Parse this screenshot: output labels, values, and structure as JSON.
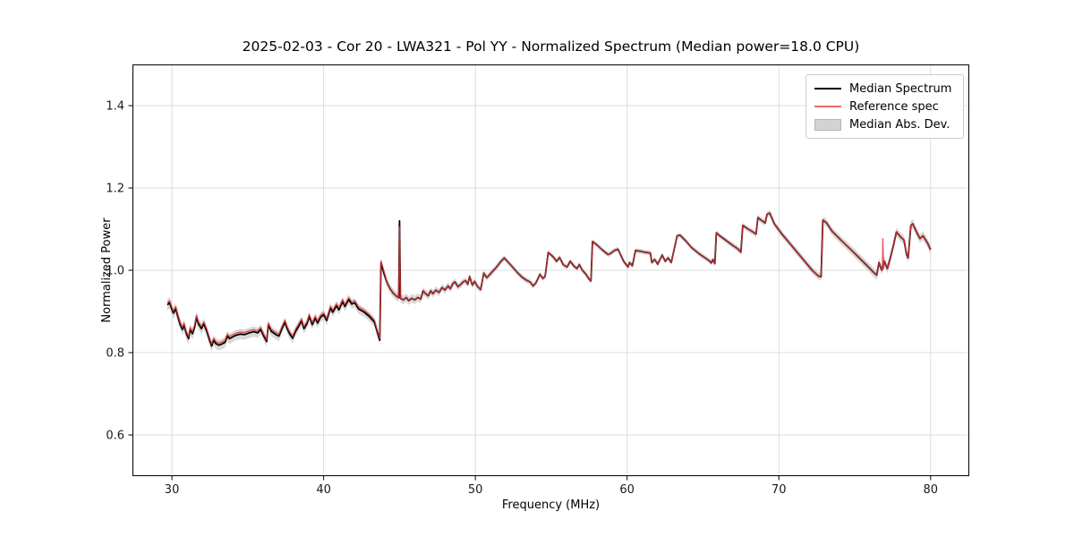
{
  "title": "2025-02-03 - Cor 20 - LWA321 - Pol YY - Normalized Spectrum (Median power=18.0 CPU)",
  "colors": {
    "median": "#000000",
    "reference": "#dd3333",
    "reference_legend": "#ee6a6a",
    "band": "#bfbfbf",
    "grid": "#dcdcdc",
    "spine": "#000000",
    "tick_label": "#1a1a1a",
    "background": "#ffffff"
  },
  "legend": {
    "position": "upper right",
    "items": [
      {
        "label": "Median Spectrum",
        "swatch": "line",
        "color": "#000000"
      },
      {
        "label": "Reference spec",
        "swatch": "line",
        "color": "#ee6a6a"
      },
      {
        "label": "Median Abs. Dev.",
        "swatch": "patch",
        "color": "#d3d3d3"
      }
    ]
  },
  "chart_data": {
    "type": "line",
    "title": "2025-02-03 - Cor 20 - LWA321 - Pol YY - Normalized Spectrum (Median power=18.0 CPU)",
    "xlabel": "Frequency (MHz)",
    "ylabel": "Normalized Power",
    "xlim": [
      27.4,
      82.55
    ],
    "ylim": [
      0.5,
      1.5
    ],
    "xticks": [
      30,
      40,
      50,
      60,
      70,
      80
    ],
    "yticks": [
      0.6,
      0.8,
      1.0,
      1.2,
      1.4
    ],
    "grid": true,
    "legend_position": "upper right",
    "series": [
      {
        "name": "Median Spectrum",
        "type": "line",
        "color": "#000000",
        "linewidth": 1.8,
        "points": [
          [
            29.7,
            0.916
          ],
          [
            29.85,
            0.921
          ],
          [
            30.0,
            0.905
          ],
          [
            30.1,
            0.896
          ],
          [
            30.25,
            0.907
          ],
          [
            30.4,
            0.886
          ],
          [
            30.55,
            0.868
          ],
          [
            30.7,
            0.856
          ],
          [
            30.8,
            0.867
          ],
          [
            30.95,
            0.846
          ],
          [
            31.1,
            0.834
          ],
          [
            31.2,
            0.856
          ],
          [
            31.35,
            0.846
          ],
          [
            31.5,
            0.862
          ],
          [
            31.62,
            0.886
          ],
          [
            31.75,
            0.87
          ],
          [
            31.95,
            0.858
          ],
          [
            32.1,
            0.87
          ],
          [
            32.3,
            0.852
          ],
          [
            32.5,
            0.828
          ],
          [
            32.62,
            0.816
          ],
          [
            32.75,
            0.83
          ],
          [
            32.9,
            0.822
          ],
          [
            33.1,
            0.818
          ],
          [
            33.3,
            0.821
          ],
          [
            33.5,
            0.825
          ],
          [
            33.65,
            0.84
          ],
          [
            33.8,
            0.834
          ],
          [
            34.0,
            0.838
          ],
          [
            34.2,
            0.842
          ],
          [
            34.5,
            0.845
          ],
          [
            34.8,
            0.844
          ],
          [
            35.1,
            0.848
          ],
          [
            35.4,
            0.851
          ],
          [
            35.65,
            0.848
          ],
          [
            35.85,
            0.856
          ],
          [
            36.05,
            0.84
          ],
          [
            36.25,
            0.827
          ],
          [
            36.35,
            0.867
          ],
          [
            36.55,
            0.852
          ],
          [
            36.8,
            0.845
          ],
          [
            37.05,
            0.84
          ],
          [
            37.25,
            0.858
          ],
          [
            37.45,
            0.874
          ],
          [
            37.6,
            0.858
          ],
          [
            37.75,
            0.846
          ],
          [
            37.95,
            0.835
          ],
          [
            38.15,
            0.852
          ],
          [
            38.35,
            0.864
          ],
          [
            38.55,
            0.877
          ],
          [
            38.7,
            0.858
          ],
          [
            38.9,
            0.87
          ],
          [
            39.05,
            0.888
          ],
          [
            39.25,
            0.868
          ],
          [
            39.45,
            0.884
          ],
          [
            39.6,
            0.872
          ],
          [
            39.8,
            0.886
          ],
          [
            40.0,
            0.892
          ],
          [
            40.2,
            0.878
          ],
          [
            40.45,
            0.908
          ],
          [
            40.6,
            0.898
          ],
          [
            40.85,
            0.914
          ],
          [
            41.0,
            0.904
          ],
          [
            41.25,
            0.924
          ],
          [
            41.4,
            0.912
          ],
          [
            41.65,
            0.929
          ],
          [
            41.85,
            0.918
          ],
          [
            42.05,
            0.921
          ],
          [
            42.3,
            0.906
          ],
          [
            42.65,
            0.899
          ],
          [
            43.0,
            0.888
          ],
          [
            43.35,
            0.874
          ],
          [
            43.55,
            0.848
          ],
          [
            43.7,
            0.83
          ],
          [
            43.78,
            1.018
          ],
          [
            44.0,
            0.99
          ],
          [
            44.2,
            0.968
          ],
          [
            44.4,
            0.954
          ],
          [
            44.6,
            0.944
          ],
          [
            44.8,
            0.937
          ],
          [
            44.95,
            0.933
          ],
          [
            45.0,
            1.12
          ],
          [
            45.06,
            0.932
          ],
          [
            45.25,
            0.928
          ],
          [
            45.45,
            0.934
          ],
          [
            45.6,
            0.926
          ],
          [
            45.8,
            0.932
          ],
          [
            46.0,
            0.928
          ],
          [
            46.2,
            0.934
          ],
          [
            46.4,
            0.93
          ],
          [
            46.55,
            0.95
          ],
          [
            46.7,
            0.944
          ],
          [
            46.9,
            0.938
          ],
          [
            47.05,
            0.95
          ],
          [
            47.2,
            0.943
          ],
          [
            47.4,
            0.952
          ],
          [
            47.6,
            0.946
          ],
          [
            47.8,
            0.958
          ],
          [
            48.0,
            0.952
          ],
          [
            48.2,
            0.962
          ],
          [
            48.35,
            0.955
          ],
          [
            48.5,
            0.967
          ],
          [
            48.65,
            0.972
          ],
          [
            48.85,
            0.96
          ],
          [
            49.05,
            0.966
          ],
          [
            49.2,
            0.972
          ],
          [
            49.35,
            0.975
          ],
          [
            49.5,
            0.966
          ],
          [
            49.62,
            0.985
          ],
          [
            49.8,
            0.964
          ],
          [
            49.95,
            0.973
          ],
          [
            50.15,
            0.96
          ],
          [
            50.35,
            0.953
          ],
          [
            50.55,
            0.993
          ],
          [
            50.75,
            0.982
          ],
          [
            50.95,
            0.99
          ],
          [
            51.15,
            0.998
          ],
          [
            51.4,
            1.008
          ],
          [
            51.65,
            1.02
          ],
          [
            51.9,
            1.03
          ],
          [
            52.15,
            1.02
          ],
          [
            52.45,
            1.008
          ],
          [
            52.75,
            0.995
          ],
          [
            53.05,
            0.984
          ],
          [
            53.35,
            0.976
          ],
          [
            53.6,
            0.972
          ],
          [
            53.8,
            0.962
          ],
          [
            54.0,
            0.97
          ],
          [
            54.25,
            0.99
          ],
          [
            54.45,
            0.98
          ],
          [
            54.6,
            0.985
          ],
          [
            54.8,
            1.043
          ],
          [
            55.1,
            1.034
          ],
          [
            55.35,
            1.022
          ],
          [
            55.55,
            1.031
          ],
          [
            55.8,
            1.013
          ],
          [
            56.05,
            1.008
          ],
          [
            56.25,
            1.022
          ],
          [
            56.5,
            1.01
          ],
          [
            56.7,
            1.004
          ],
          [
            56.85,
            1.014
          ],
          [
            57.05,
            1.0
          ],
          [
            57.3,
            0.99
          ],
          [
            57.5,
            0.978
          ],
          [
            57.62,
            0.974
          ],
          [
            57.72,
            1.07
          ],
          [
            58.0,
            1.062
          ],
          [
            58.35,
            1.05
          ],
          [
            58.75,
            1.038
          ],
          [
            58.95,
            1.042
          ],
          [
            59.15,
            1.048
          ],
          [
            59.4,
            1.051
          ],
          [
            59.77,
            1.022
          ],
          [
            60.06,
            1.008
          ],
          [
            60.16,
            1.019
          ],
          [
            60.35,
            1.011
          ],
          [
            60.55,
            1.048
          ],
          [
            60.9,
            1.046
          ],
          [
            61.15,
            1.044
          ],
          [
            61.53,
            1.042
          ],
          [
            61.63,
            1.019
          ],
          [
            61.82,
            1.026
          ],
          [
            62.02,
            1.015
          ],
          [
            62.31,
            1.037
          ],
          [
            62.51,
            1.022
          ],
          [
            62.71,
            1.03
          ],
          [
            62.91,
            1.019
          ],
          [
            63.3,
            1.084
          ],
          [
            63.5,
            1.085
          ],
          [
            63.9,
            1.07
          ],
          [
            64.25,
            1.055
          ],
          [
            64.75,
            1.04
          ],
          [
            65.15,
            1.03
          ],
          [
            65.45,
            1.022
          ],
          [
            65.55,
            1.018
          ],
          [
            65.65,
            1.026
          ],
          [
            65.78,
            1.016
          ],
          [
            65.88,
            1.091
          ],
          [
            66.1,
            1.084
          ],
          [
            66.5,
            1.073
          ],
          [
            66.9,
            1.062
          ],
          [
            67.3,
            1.052
          ],
          [
            67.5,
            1.044
          ],
          [
            67.62,
            1.109
          ],
          [
            67.9,
            1.102
          ],
          [
            68.2,
            1.095
          ],
          [
            68.5,
            1.088
          ],
          [
            68.62,
            1.128
          ],
          [
            68.9,
            1.12
          ],
          [
            69.1,
            1.115
          ],
          [
            69.22,
            1.136
          ],
          [
            69.4,
            1.139
          ],
          [
            69.7,
            1.113
          ],
          [
            70.2,
            1.088
          ],
          [
            70.7,
            1.066
          ],
          [
            71.2,
            1.044
          ],
          [
            71.7,
            1.022
          ],
          [
            72.2,
            1.0
          ],
          [
            72.6,
            0.986
          ],
          [
            72.78,
            0.984
          ],
          [
            72.9,
            1.122
          ],
          [
            73.15,
            1.115
          ],
          [
            73.5,
            1.095
          ],
          [
            74.1,
            1.073
          ],
          [
            74.7,
            1.052
          ],
          [
            75.3,
            1.03
          ],
          [
            75.9,
            1.008
          ],
          [
            76.3,
            0.993
          ],
          [
            76.45,
            0.988
          ],
          [
            76.6,
            1.019
          ],
          [
            76.78,
            1.0
          ],
          [
            76.95,
            1.022
          ],
          [
            77.15,
            1.004
          ],
          [
            77.35,
            1.03
          ],
          [
            77.55,
            1.06
          ],
          [
            77.75,
            1.093
          ],
          [
            78.0,
            1.082
          ],
          [
            78.25,
            1.073
          ],
          [
            78.42,
            1.037
          ],
          [
            78.52,
            1.03
          ],
          [
            78.7,
            1.109
          ],
          [
            78.82,
            1.113
          ],
          [
            79.1,
            1.091
          ],
          [
            79.3,
            1.077
          ],
          [
            79.5,
            1.084
          ],
          [
            79.8,
            1.066
          ],
          [
            80.0,
            1.05
          ]
        ]
      },
      {
        "name": "Reference spec",
        "type": "line",
        "color": "#dd3333",
        "opacity": 0.85,
        "linewidth": 1.3,
        "derive": {
          "from": "Median Spectrum",
          "offset_below_mhz": 44.0,
          "offset": 0.005,
          "overrides": [
            [
              45.0,
              1.105
            ]
          ],
          "extra_points": [
            [
              76.82,
              1.002
            ],
            [
              76.85,
              1.077
            ],
            [
              76.9,
              1.004
            ]
          ]
        }
      },
      {
        "name": "Median Abs. Dev.",
        "type": "band",
        "color": "#bfbfbf",
        "opacity": 0.6,
        "around": "Median Spectrum",
        "halfwidth_points": [
          [
            29.7,
            0.014
          ],
          [
            33.0,
            0.013
          ],
          [
            37.0,
            0.012
          ],
          [
            41.0,
            0.012
          ],
          [
            44.0,
            0.011
          ],
          [
            46.0,
            0.01
          ],
          [
            49.0,
            0.008
          ],
          [
            52.0,
            0.007
          ],
          [
            56.0,
            0.006
          ],
          [
            60.0,
            0.006
          ],
          [
            64.0,
            0.006
          ],
          [
            68.0,
            0.007
          ],
          [
            70.0,
            0.008
          ],
          [
            73.0,
            0.009
          ],
          [
            76.0,
            0.011
          ],
          [
            80.0,
            0.011
          ]
        ]
      }
    ]
  }
}
